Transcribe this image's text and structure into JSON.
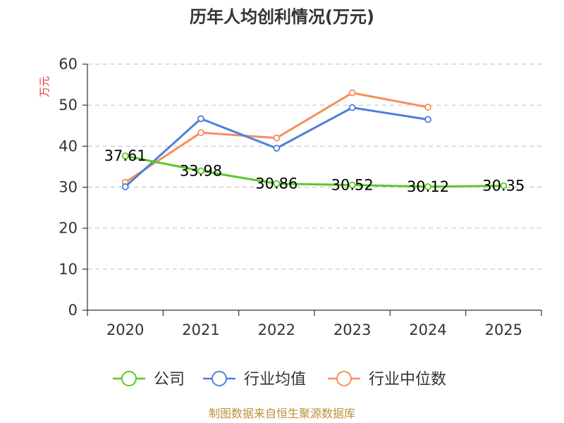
{
  "chart_data": {
    "type": "line",
    "title": "历年人均创利情况(万元)",
    "ylabel": "万元",
    "xlabel": "",
    "categories": [
      "2020",
      "2021",
      "2022",
      "2023",
      "2024",
      "2025"
    ],
    "ylim": [
      0,
      60
    ],
    "yticks": [
      0,
      10,
      20,
      30,
      40,
      50,
      60
    ],
    "grid": true,
    "legend_position": "bottom",
    "series": [
      {
        "name": "公司",
        "color": "#5cc826",
        "values": [
          37.61,
          33.98,
          30.86,
          30.52,
          30.12,
          30.35
        ],
        "labels": [
          "37.61",
          "33.98",
          "30.86",
          "30.52",
          "30.12",
          "30.35"
        ]
      },
      {
        "name": "行业均值",
        "color": "#4f7fdd",
        "values": [
          30.1,
          46.7,
          39.5,
          49.4,
          46.5,
          null
        ]
      },
      {
        "name": "行业中位数",
        "color": "#f5905a",
        "values": [
          31.2,
          43.3,
          42.0,
          53.0,
          49.5,
          null
        ]
      }
    ]
  },
  "footer": {
    "source": "制图数据来自恒生聚源数据库"
  }
}
